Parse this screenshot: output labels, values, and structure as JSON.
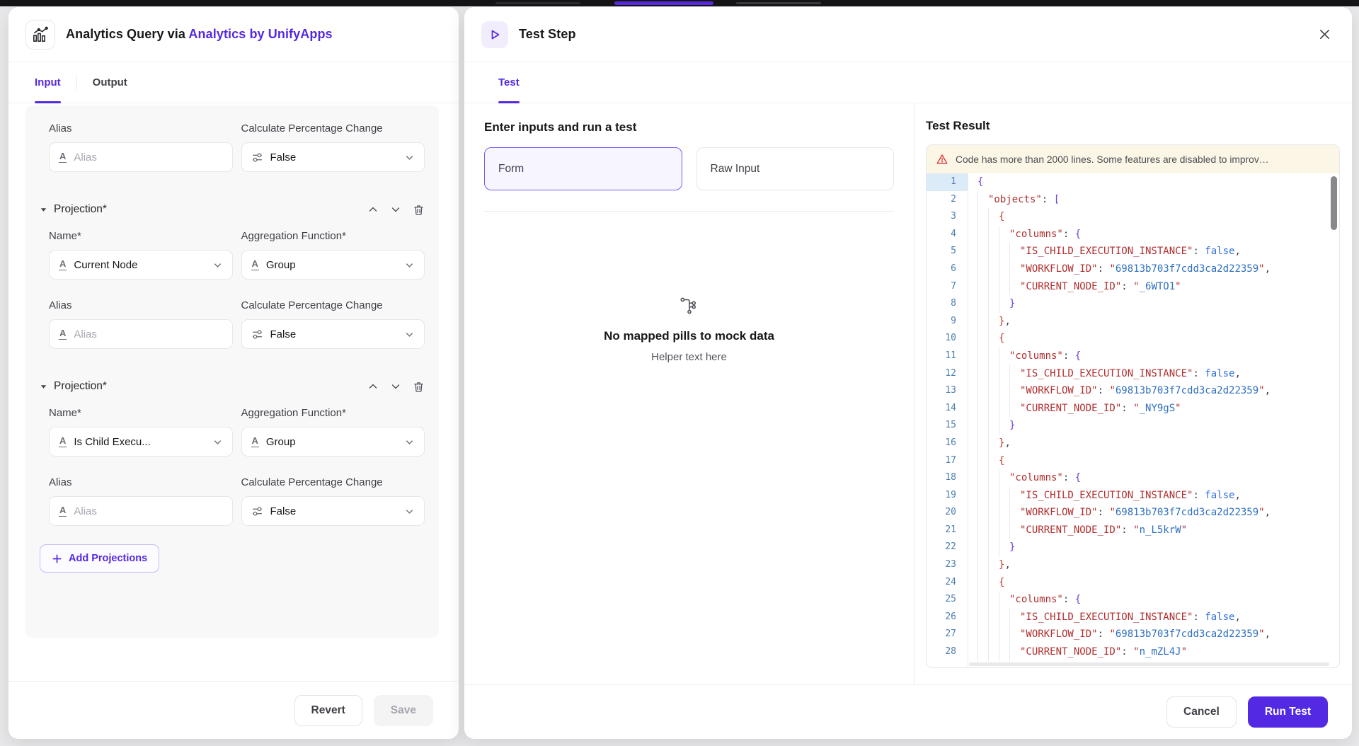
{
  "colors": {
    "accent": "#5429e3",
    "warning_icon": "#dc2626",
    "code_key": "#b12f2f",
    "code_string": "#2e6fc0",
    "code_bracket": "#c03a2e",
    "code_bracket_alt": "#7040d8",
    "line_number": "#4d7fae"
  },
  "icons": {
    "text_field_glyph": "A"
  },
  "left_panel": {
    "title_prefix": "Analytics Query via ",
    "title_app": "Analytics by UnifyApps",
    "tabs": {
      "input": "Input",
      "output": "Output"
    },
    "form": {
      "alias_label": "Alias",
      "alias_placeholder": "Alias",
      "calc_label": "Calculate Percentage Change",
      "calc_value": "False",
      "projection_header": "Projection*",
      "name_label": "Name*",
      "agg_label": "Aggregation Function*",
      "projections": [
        {
          "name_value": "Current Node",
          "agg_value": "Group"
        },
        {
          "name_value": "Is Child Execu...",
          "agg_value": "Group"
        }
      ],
      "add_button_label": "Add Projections"
    },
    "revert_label": "Revert",
    "save_label": "Save"
  },
  "test_panel": {
    "title": "Test Step",
    "tab_label": "Test",
    "inputs": {
      "heading": "Enter inputs and run a test",
      "form_option": "Form",
      "raw_option": "Raw Input",
      "empty_title": "No mapped pills to mock data",
      "empty_helper": "Helper text here"
    },
    "result": {
      "heading": "Test Result",
      "warning": "Code has more than 2000 lines. Some features are disabled to improv…"
    },
    "cancel_label": "Cancel",
    "run_label": "Run Test"
  },
  "code": {
    "active_line": 1,
    "lines": [
      {
        "i": 0,
        "t": [
          [
            "brp",
            "{"
          ]
        ]
      },
      {
        "i": 1,
        "t": [
          [
            "key",
            "\"objects\""
          ],
          [
            "pun",
            ": "
          ],
          [
            "brp",
            "["
          ]
        ]
      },
      {
        "i": 2,
        "t": [
          [
            "brr",
            "{"
          ]
        ]
      },
      {
        "i": 3,
        "t": [
          [
            "key",
            "\"columns\""
          ],
          [
            "pun",
            ": "
          ],
          [
            "brp",
            "{"
          ]
        ]
      },
      {
        "i": 4,
        "t": [
          [
            "key",
            "\"IS_CHILD_EXECUTION_INSTANCE\""
          ],
          [
            "pun",
            ": "
          ],
          [
            "bool",
            "false"
          ],
          [
            "pun",
            ","
          ]
        ]
      },
      {
        "i": 4,
        "t": [
          [
            "key",
            "\"WORKFLOW_ID\""
          ],
          [
            "pun",
            ": "
          ],
          [
            "qt",
            "\""
          ],
          [
            "str",
            "69813b703f7cdd3ca2d22359"
          ],
          [
            "qt",
            "\""
          ],
          [
            "pun",
            ","
          ]
        ]
      },
      {
        "i": 4,
        "t": [
          [
            "key",
            "\"CURRENT_NODE_ID\""
          ],
          [
            "pun",
            ": "
          ],
          [
            "qt",
            "\""
          ],
          [
            "str",
            "_6WTO1"
          ],
          [
            "qt",
            "\""
          ]
        ]
      },
      {
        "i": 3,
        "t": [
          [
            "brp",
            "}"
          ]
        ]
      },
      {
        "i": 2,
        "t": [
          [
            "brr",
            "}"
          ],
          [
            "pun",
            ","
          ]
        ]
      },
      {
        "i": 2,
        "t": [
          [
            "brr",
            "{"
          ]
        ]
      },
      {
        "i": 3,
        "t": [
          [
            "key",
            "\"columns\""
          ],
          [
            "pun",
            ": "
          ],
          [
            "brp",
            "{"
          ]
        ]
      },
      {
        "i": 4,
        "t": [
          [
            "key",
            "\"IS_CHILD_EXECUTION_INSTANCE\""
          ],
          [
            "pun",
            ": "
          ],
          [
            "bool",
            "false"
          ],
          [
            "pun",
            ","
          ]
        ]
      },
      {
        "i": 4,
        "t": [
          [
            "key",
            "\"WORKFLOW_ID\""
          ],
          [
            "pun",
            ": "
          ],
          [
            "qt",
            "\""
          ],
          [
            "str",
            "69813b703f7cdd3ca2d22359"
          ],
          [
            "qt",
            "\""
          ],
          [
            "pun",
            ","
          ]
        ]
      },
      {
        "i": 4,
        "t": [
          [
            "key",
            "\"CURRENT_NODE_ID\""
          ],
          [
            "pun",
            ": "
          ],
          [
            "qt",
            "\""
          ],
          [
            "str",
            "_NY9gS"
          ],
          [
            "qt",
            "\""
          ]
        ]
      },
      {
        "i": 3,
        "t": [
          [
            "brp",
            "}"
          ]
        ]
      },
      {
        "i": 2,
        "t": [
          [
            "brr",
            "}"
          ],
          [
            "pun",
            ","
          ]
        ]
      },
      {
        "i": 2,
        "t": [
          [
            "brr",
            "{"
          ]
        ]
      },
      {
        "i": 3,
        "t": [
          [
            "key",
            "\"columns\""
          ],
          [
            "pun",
            ": "
          ],
          [
            "brp",
            "{"
          ]
        ]
      },
      {
        "i": 4,
        "t": [
          [
            "key",
            "\"IS_CHILD_EXECUTION_INSTANCE\""
          ],
          [
            "pun",
            ": "
          ],
          [
            "bool",
            "false"
          ],
          [
            "pun",
            ","
          ]
        ]
      },
      {
        "i": 4,
        "t": [
          [
            "key",
            "\"WORKFLOW_ID\""
          ],
          [
            "pun",
            ": "
          ],
          [
            "qt",
            "\""
          ],
          [
            "str",
            "69813b703f7cdd3ca2d22359"
          ],
          [
            "qt",
            "\""
          ],
          [
            "pun",
            ","
          ]
        ]
      },
      {
        "i": 4,
        "t": [
          [
            "key",
            "\"CURRENT_NODE_ID\""
          ],
          [
            "pun",
            ": "
          ],
          [
            "qt",
            "\""
          ],
          [
            "str",
            "n_L5krW"
          ],
          [
            "qt",
            "\""
          ]
        ]
      },
      {
        "i": 3,
        "t": [
          [
            "brp",
            "}"
          ]
        ]
      },
      {
        "i": 2,
        "t": [
          [
            "brr",
            "}"
          ],
          [
            "pun",
            ","
          ]
        ]
      },
      {
        "i": 2,
        "t": [
          [
            "brr",
            "{"
          ]
        ]
      },
      {
        "i": 3,
        "t": [
          [
            "key",
            "\"columns\""
          ],
          [
            "pun",
            ": "
          ],
          [
            "brp",
            "{"
          ]
        ]
      },
      {
        "i": 4,
        "t": [
          [
            "key",
            "\"IS_CHILD_EXECUTION_INSTANCE\""
          ],
          [
            "pun",
            ": "
          ],
          [
            "bool",
            "false"
          ],
          [
            "pun",
            ","
          ]
        ]
      },
      {
        "i": 4,
        "t": [
          [
            "key",
            "\"WORKFLOW_ID\""
          ],
          [
            "pun",
            ": "
          ],
          [
            "qt",
            "\""
          ],
          [
            "str",
            "69813b703f7cdd3ca2d22359"
          ],
          [
            "qt",
            "\""
          ],
          [
            "pun",
            ","
          ]
        ]
      },
      {
        "i": 4,
        "t": [
          [
            "key",
            "\"CURRENT_NODE_ID\""
          ],
          [
            "pun",
            ": "
          ],
          [
            "qt",
            "\""
          ],
          [
            "str",
            "n_mZL4J"
          ],
          [
            "qt",
            "\""
          ]
        ]
      }
    ]
  }
}
